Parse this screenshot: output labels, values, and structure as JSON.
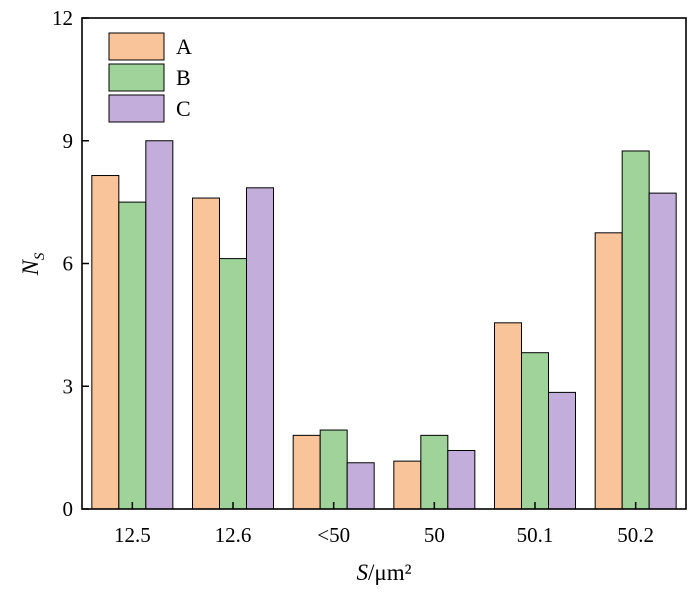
{
  "chart_data": {
    "type": "bar",
    "categories": [
      "12.5",
      "12.6",
      "<50",
      "50",
      "50.1",
      "50.2"
    ],
    "series": [
      {
        "name": "A",
        "color": "#f9c49a",
        "values": [
          8.15,
          7.6,
          1.8,
          1.17,
          4.55,
          6.75
        ]
      },
      {
        "name": "B",
        "color": "#9fd39a",
        "values": [
          7.5,
          6.12,
          1.93,
          1.8,
          3.82,
          8.75
        ]
      },
      {
        "name": "C",
        "color": "#c3aedb",
        "values": [
          9.0,
          7.85,
          1.13,
          1.43,
          2.85,
          7.72
        ]
      }
    ],
    "xlabel": {
      "italic": "S",
      "rest": "/μm²"
    },
    "ylabel": {
      "main": "N",
      "sub": "S"
    },
    "ylim": [
      0,
      12
    ],
    "yticks": [
      "0",
      "3",
      "6",
      "9",
      "12"
    ],
    "grid": false,
    "legend_position": "top-left"
  }
}
